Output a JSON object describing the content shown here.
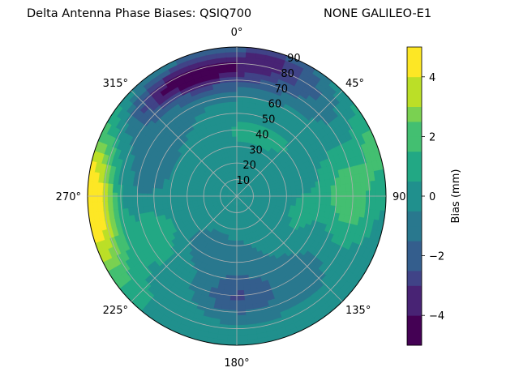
{
  "chart_data": {
    "type": "heatmap",
    "projection": "polar",
    "title": "Delta Antenna Phase Biases: QSIQ700",
    "title_right": "NONE GALILEO-E1",
    "angular_tick_labels": [
      "0°",
      "45°",
      "90°",
      "135°",
      "180°",
      "225°",
      "270°",
      "315°"
    ],
    "angular_direction": "clockwise",
    "angular_zero": "top",
    "radial_tick_labels": [
      "10",
      "20",
      "30",
      "40",
      "50",
      "60",
      "70",
      "80",
      "90"
    ],
    "radial_range": [
      0,
      90
    ],
    "grid": true,
    "colorbar": {
      "label": "Bias (mm)",
      "range": [
        -5,
        5
      ],
      "levels": [
        -5,
        -4.5,
        -4,
        -3.5,
        -3,
        -2.5,
        -2,
        -1.5,
        -1,
        -0.5,
        0,
        0.5,
        1,
        1.5,
        2,
        2.5,
        3,
        3.5,
        4,
        4.5,
        5
      ],
      "tick_labels": [
        "−4",
        "−2",
        "0",
        "2",
        "4"
      ],
      "tick_values": [
        -4,
        -2,
        0,
        2,
        4
      ],
      "placement": "right"
    },
    "colors": [
      "#440154",
      "#482374",
      "#404387",
      "#345e8d",
      "#29788e",
      "#20908d",
      "#22a884",
      "#43bf71",
      "#7ad151",
      "#bbdf27",
      "#fde725"
    ],
    "features": [
      {
        "az": 0,
        "zen": 75,
        "rAz": 45,
        "rZen": 12,
        "value": -2.5
      },
      {
        "az": 335,
        "zen": 78,
        "rAz": 25,
        "rZen": 9,
        "value": -3.1
      },
      {
        "az": 15,
        "zen": 85,
        "rAz": 20,
        "rZen": 8,
        "value": -2.2
      },
      {
        "az": 180,
        "zen": 62,
        "rAz": 20,
        "rZen": 12,
        "value": -2.1
      },
      {
        "az": 185,
        "zen": 40,
        "rAz": 30,
        "rZen": 15,
        "value": -1.0
      },
      {
        "az": 145,
        "zen": 60,
        "rAz": 25,
        "rZen": 18,
        "value": -0.9
      },
      {
        "az": 90,
        "zen": 68,
        "rAz": 22,
        "rZen": 14,
        "value": 2.3
      },
      {
        "az": 70,
        "zen": 88,
        "rAz": 18,
        "rZen": 10,
        "value": 1.6
      },
      {
        "az": 268,
        "zen": 90,
        "rAz": 28,
        "rZen": 11,
        "value": 4.8
      },
      {
        "az": 262,
        "zen": 80,
        "rAz": 30,
        "rZen": 10,
        "value": 1.9
      },
      {
        "az": 245,
        "zen": 55,
        "rAz": 18,
        "rZen": 15,
        "value": 1.3
      },
      {
        "az": 300,
        "zen": 55,
        "rAz": 40,
        "rZen": 16,
        "value": -0.9
      },
      {
        "az": 20,
        "zen": 40,
        "rAz": 40,
        "rZen": 10,
        "value": 0.7
      },
      {
        "az": 110,
        "zen": 40,
        "rAz": 30,
        "rZen": 12,
        "value": 0.6
      },
      {
        "az": 320,
        "zen": 25,
        "rAz": 40,
        "rZen": 12,
        "value": 0.3
      },
      {
        "az": 215,
        "zen": 35,
        "rAz": 20,
        "rZen": 12,
        "value": -0.6
      }
    ]
  }
}
